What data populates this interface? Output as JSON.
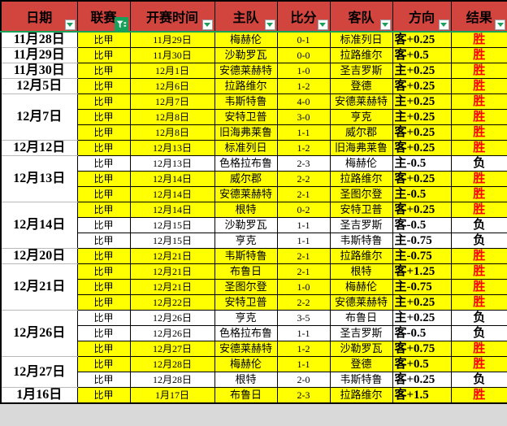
{
  "colors": {
    "header_bg": "#D2443E",
    "win_row_bg": "#FFFF00",
    "loss_row_bg": "#FFFFFF",
    "win_text": "#FF0000",
    "icon_green": "#18A05A"
  },
  "table": {
    "columns": [
      {
        "label": "日期",
        "filter": "dropdown"
      },
      {
        "label": "联赛",
        "filter": "funnel-active"
      },
      {
        "label": "开赛时间",
        "filter": "dropdown"
      },
      {
        "label": "主队",
        "filter": "dropdown"
      },
      {
        "label": "比分",
        "filter": "dropdown"
      },
      {
        "label": "客队",
        "filter": "dropdown"
      },
      {
        "label": "方向",
        "filter": "dropdown"
      },
      {
        "label": "结果",
        "filter": "dropdown"
      }
    ],
    "rows": [
      {
        "date": "11月28日",
        "span": 1,
        "league": "比甲",
        "time": "11月29日",
        "home": "梅赫伦",
        "score": "0-1",
        "away": "标准列日",
        "dir": "客+0.25",
        "result": "胜",
        "win": true
      },
      {
        "date": "11月29日",
        "span": 1,
        "league": "比甲",
        "time": "11月30日",
        "home": "沙勒罗瓦",
        "score": "0-0",
        "away": "拉路维尔",
        "dir": "客+0.5",
        "result": "胜",
        "win": true
      },
      {
        "date": "11月30日",
        "span": 1,
        "league": "比甲",
        "time": "12月1日",
        "home": "安德莱赫特",
        "score": "1-0",
        "away": "圣吉罗斯",
        "dir": "主+0.25",
        "result": "胜",
        "win": true
      },
      {
        "date": "12月5日",
        "span": 1,
        "league": "比甲",
        "time": "12月6日",
        "home": "拉路维尔",
        "score": "1-2",
        "away": "登德",
        "dir": "客+0.25",
        "result": "胜",
        "win": true
      },
      {
        "date": "12月7日",
        "span": 3,
        "league": "比甲",
        "time": "12月7日",
        "home": "韦斯特鲁",
        "score": "4-0",
        "away": "安德莱赫特",
        "dir": "主+0.25",
        "result": "胜",
        "win": true
      },
      {
        "league": "比甲",
        "time": "12月8日",
        "home": "安特卫普",
        "score": "3-0",
        "away": "亨克",
        "dir": "主+0.25",
        "result": "胜",
        "win": true
      },
      {
        "league": "比甲",
        "time": "12月8日",
        "home": "旧海弗莱鲁",
        "score": "1-1",
        "away": "威尔郡",
        "dir": "客+0.25",
        "result": "胜",
        "win": true
      },
      {
        "date": "12月12日",
        "span": 1,
        "league": "比甲",
        "time": "12月13日",
        "home": "标准列日",
        "score": "1-2",
        "away": "旧海弗莱鲁",
        "dir": "客+0.25",
        "result": "胜",
        "win": true
      },
      {
        "date": "12月13日",
        "span": 3,
        "league": "比甲",
        "time": "12月13日",
        "home": "色格拉布鲁",
        "score": "2-3",
        "away": "梅赫伦",
        "dir": "主-0.5",
        "result": "负",
        "win": false
      },
      {
        "league": "比甲",
        "time": "12月14日",
        "home": "威尔郡",
        "score": "2-2",
        "away": "拉路维尔",
        "dir": "客+0.25",
        "result": "胜",
        "win": true
      },
      {
        "league": "比甲",
        "time": "12月14日",
        "home": "安德莱赫特",
        "score": "2-1",
        "away": "圣图尔登",
        "dir": "主-0.5",
        "result": "胜",
        "win": true
      },
      {
        "date": "12月14日",
        "span": 3,
        "league": "比甲",
        "time": "12月14日",
        "home": "根特",
        "score": "0-2",
        "away": "安特卫普",
        "dir": "客+0.25",
        "result": "胜",
        "win": true
      },
      {
        "league": "比甲",
        "time": "12月15日",
        "home": "沙勒罗瓦",
        "score": "1-1",
        "away": "圣吉罗斯",
        "dir": "客-0.5",
        "result": "负",
        "win": false
      },
      {
        "league": "比甲",
        "time": "12月15日",
        "home": "亨克",
        "score": "1-1",
        "away": "韦斯特鲁",
        "dir": "主-0.75",
        "result": "负",
        "win": false
      },
      {
        "date": "12月20日",
        "span": 1,
        "league": "比甲",
        "time": "12月21日",
        "home": "韦斯特鲁",
        "score": "2-1",
        "away": "拉路维尔",
        "dir": "主-0.75",
        "result": "胜",
        "win": true
      },
      {
        "date": "12月21日",
        "span": 3,
        "league": "比甲",
        "time": "12月21日",
        "home": "布鲁日",
        "score": "2-1",
        "away": "根特",
        "dir": "客+1.25",
        "result": "胜",
        "win": true
      },
      {
        "league": "比甲",
        "time": "12月21日",
        "home": "圣图尔登",
        "score": "1-0",
        "away": "梅赫伦",
        "dir": "主-0.75",
        "result": "胜",
        "win": true
      },
      {
        "league": "比甲",
        "time": "12月22日",
        "home": "安特卫普",
        "score": "2-2",
        "away": "安德莱赫特",
        "dir": "主+0.25",
        "result": "胜",
        "win": true
      },
      {
        "date": "12月26日",
        "span": 3,
        "league": "比甲",
        "time": "12月26日",
        "home": "亨克",
        "score": "3-5",
        "away": "布鲁日",
        "dir": "主+0.25",
        "result": "负",
        "win": false
      },
      {
        "league": "比甲",
        "time": "12月26日",
        "home": "色格拉布鲁",
        "score": "1-1",
        "away": "圣吉罗斯",
        "dir": "客-0.5",
        "result": "负",
        "win": false
      },
      {
        "league": "比甲",
        "time": "12月27日",
        "home": "安德莱赫特",
        "score": "1-2",
        "away": "沙勒罗瓦",
        "dir": "客+0.75",
        "result": "胜",
        "win": true
      },
      {
        "date": "12月27日",
        "span": 2,
        "league": "比甲",
        "time": "12月28日",
        "home": "梅赫伦",
        "score": "1-1",
        "away": "登德",
        "dir": "客+0.5",
        "result": "胜",
        "win": true
      },
      {
        "league": "比甲",
        "time": "12月28日",
        "home": "根特",
        "score": "2-0",
        "away": "韦斯特鲁",
        "dir": "客+0.25",
        "result": "负",
        "win": false
      },
      {
        "date": "1月16日",
        "span": 1,
        "league": "比甲",
        "time": "1月17日",
        "home": "布鲁日",
        "score": "2-3",
        "away": "拉路维尔",
        "dir": "客+1.5",
        "result": "胜",
        "win": true
      }
    ]
  }
}
